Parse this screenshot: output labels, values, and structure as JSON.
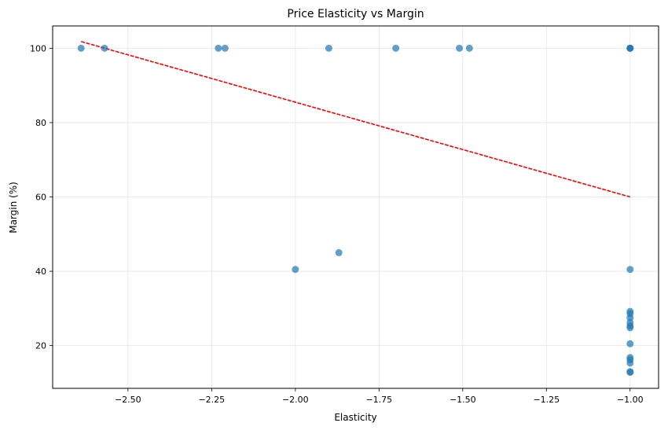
{
  "chart_data": {
    "type": "scatter",
    "title": "Price Elasticity vs Margin",
    "xlabel": "Elasticity",
    "ylabel": "Margin (%)",
    "xlim": [
      -2.725,
      -0.915
    ],
    "ylim": [
      8.5,
      106.0
    ],
    "xticks": [
      -2.5,
      -2.25,
      -2.0,
      -1.75,
      -1.5,
      -1.25,
      -1.0
    ],
    "xtick_labels": [
      "−2.50",
      "−2.25",
      "−2.00",
      "−1.75",
      "−1.50",
      "−1.25",
      "−1.00"
    ],
    "yticks": [
      20,
      40,
      60,
      80,
      100
    ],
    "ytick_labels": [
      "20",
      "40",
      "60",
      "80",
      "100"
    ],
    "grid": true,
    "points": [
      {
        "x": -2.64,
        "y": 100
      },
      {
        "x": -2.57,
        "y": 100
      },
      {
        "x": -2.23,
        "y": 100
      },
      {
        "x": -2.21,
        "y": 100
      },
      {
        "x": -1.9,
        "y": 100
      },
      {
        "x": -1.7,
        "y": 100
      },
      {
        "x": -1.51,
        "y": 100
      },
      {
        "x": -1.48,
        "y": 100
      },
      {
        "x": -1.0,
        "y": 100
      },
      {
        "x": -1.0,
        "y": 100
      },
      {
        "x": -1.0,
        "y": 100
      },
      {
        "x": -2.0,
        "y": 40.5
      },
      {
        "x": -1.87,
        "y": 45
      },
      {
        "x": -1.0,
        "y": 40.5
      },
      {
        "x": -1.0,
        "y": 29.2
      },
      {
        "x": -1.0,
        "y": 28.6
      },
      {
        "x": -1.0,
        "y": 27.5
      },
      {
        "x": -1.0,
        "y": 26.2
      },
      {
        "x": -1.0,
        "y": 25.3
      },
      {
        "x": -1.0,
        "y": 24.8
      },
      {
        "x": -1.0,
        "y": 20.5
      },
      {
        "x": -1.0,
        "y": 16.8
      },
      {
        "x": -1.0,
        "y": 16.2
      },
      {
        "x": -1.0,
        "y": 15.3
      },
      {
        "x": -1.0,
        "y": 13.0
      },
      {
        "x": -1.0,
        "y": 12.8
      }
    ],
    "trendline": {
      "x": [
        -2.64,
        -1.0
      ],
      "y": [
        101.8,
        60.0
      ]
    },
    "colors": {
      "points": "#1f77b4",
      "trendline": "#ff0000",
      "grid": "#e6e6e6"
    }
  }
}
